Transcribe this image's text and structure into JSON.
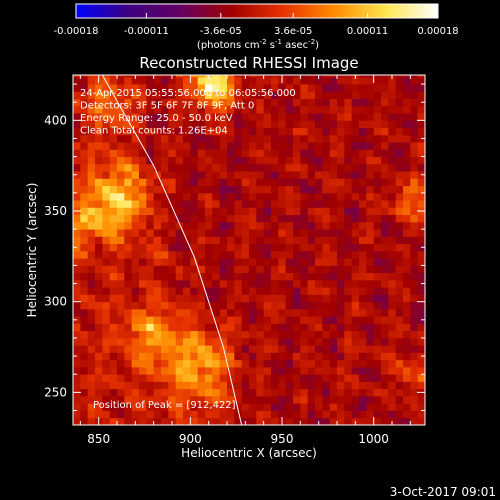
{
  "chart_data": {
    "type": "heatmap",
    "title": "Reconstructed RHESSI Image",
    "colorbar": {
      "tick_labels": [
        "-0.00018",
        "-0.00011",
        "-3.6e-05",
        "3.6e-05",
        "0.00011",
        "0.00018"
      ],
      "tick_values": [
        -0.00018,
        -0.00011,
        -3.6e-05,
        3.6e-05,
        0.00011,
        0.00018
      ],
      "range": [
        -0.00018,
        0.00018
      ],
      "unit_line1": "(photons cm",
      "unit_sup1": "-2",
      "unit_mid1": " s",
      "unit_sup2": "-1",
      "unit_mid2": " asec",
      "unit_sup3": "-2",
      "unit_end": ")",
      "colors": [
        "#0000ff",
        "#3c0082",
        "#640064",
        "#a00000",
        "#e63200",
        "#ff8c00",
        "#ffe650",
        "#ffffff"
      ]
    },
    "xlabel": "Heliocentric X (arcsec)",
    "ylabel": "Heliocentric Y (arcsec)",
    "xlim": [
      836,
      1028
    ],
    "ylim": [
      232,
      425
    ],
    "x_ticks": [
      850,
      900,
      950,
      1000
    ],
    "y_ticks": [
      250,
      300,
      350,
      400
    ],
    "grid": false,
    "annotations": [
      "24-Apr-2015 05:55:56.000 to 06:05:56.000",
      "Detectors: 3F 5F 6F 7F 8F 9F, Att 0",
      "Energy Range: 25.0 - 50.0 keV",
      "Clean    Total counts: 1.26E+04"
    ],
    "peak_label": "Position of Peak = [912,422]",
    "peak": [
      912,
      422
    ],
    "limb": [
      [
        852,
        425
      ],
      [
        880,
        375
      ],
      [
        902,
        325
      ],
      [
        918,
        275
      ],
      [
        928,
        232
      ]
    ],
    "bright_regions": [
      {
        "x": 862,
        "y": 360,
        "sigma": 12,
        "level": 0.0001
      },
      {
        "x": 848,
        "y": 345,
        "sigma": 10,
        "level": 8e-05
      },
      {
        "x": 905,
        "y": 265,
        "sigma": 14,
        "level": 0.0001
      },
      {
        "x": 878,
        "y": 282,
        "sigma": 10,
        "level": 8e-05
      },
      {
        "x": 912,
        "y": 420,
        "sigma": 9,
        "level": 0.00016
      },
      {
        "x": 1020,
        "y": 355,
        "sigma": 8,
        "level": 7e-05
      },
      {
        "x": 1022,
        "y": 262,
        "sigma": 8,
        "level": 6e-05
      },
      {
        "x": 858,
        "y": 410,
        "sigma": 10,
        "level": 7e-05
      }
    ]
  },
  "footer": {
    "date": "3-Oct-2017 09:01"
  }
}
